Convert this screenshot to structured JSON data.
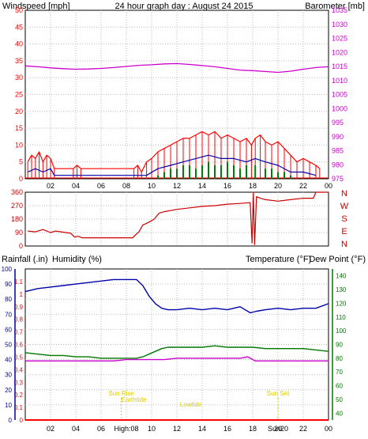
{
  "header": {
    "title": "24 hour graph day : August 24 2015",
    "left_label": "Windspeed [mph]",
    "right_label": "Barometer [mb]"
  },
  "lower_header": {
    "rain_label": "Rainfall (.in)",
    "humidity_label": "Humidity (%)",
    "temp_label": "Temperature (°F)",
    "dew_label": "Dew Point (°F)"
  },
  "colors": {
    "wind": "#ff0000",
    "gust": "#0000aa",
    "avg_wind": "#008000",
    "barometer": "#cc00cc",
    "direction": "#cc0000",
    "humidity": "#0000aa",
    "temperature": "#007700",
    "dew_point": "#cc00cc",
    "rain": "#ff0000",
    "events": "#ddcc00",
    "grid": "#bbbbbb"
  },
  "chart_data": [
    {
      "type": "line",
      "panel": "wind-barometer",
      "x_ticks": [
        "02",
        "04",
        "06",
        "08",
        "10",
        "12",
        "14",
        "16",
        "18",
        "20",
        "22",
        "00"
      ],
      "xlim": [
        0,
        24
      ],
      "y_left_ticks": [
        "0",
        "5",
        "10",
        "15",
        "20",
        "25",
        "30",
        "35",
        "40",
        "45",
        "50"
      ],
      "ylim_left": [
        0,
        50
      ],
      "y_right_ticks": [
        "975",
        "980",
        "985",
        "990",
        "995",
        "1000",
        "1005",
        "1010",
        "1015",
        "1020",
        "1025",
        "1030",
        "1035"
      ],
      "ylim_right": [
        975,
        1035
      ],
      "series": [
        {
          "name": "Windspeed [mph]",
          "axis": "left",
          "x": [
            0.2,
            0.5,
            0.8,
            1.1,
            1.4,
            1.7,
            2.0,
            2.3,
            3.8,
            4.1,
            4.4,
            8.6,
            8.9,
            9.2,
            9.6,
            10.0,
            10.5,
            11.0,
            11.5,
            12.0,
            12.5,
            13.0,
            13.5,
            14.0,
            14.5,
            15.0,
            15.5,
            16.0,
            16.5,
            17.0,
            17.5,
            17.9,
            18.2,
            18.6,
            19.0,
            19.5,
            20.0,
            20.5,
            21.0,
            21.5,
            22.0,
            22.5,
            23.0,
            23.3
          ],
          "y": [
            5,
            7,
            6,
            8,
            5,
            7,
            6,
            3,
            3,
            4,
            3,
            3,
            4,
            2,
            5,
            6,
            8,
            9,
            10,
            11,
            12,
            12,
            13,
            14,
            13,
            14,
            12,
            13,
            12,
            11,
            12,
            10,
            12,
            13,
            11,
            10,
            11,
            9,
            7,
            5,
            6,
            5,
            4,
            3
          ]
        },
        {
          "name": "Gust",
          "axis": "left",
          "x": [
            0.2,
            0.8,
            1.4,
            2.0,
            2.3,
            3.8,
            4.4,
            8.6,
            9.6,
            10.5,
            11.5,
            12.5,
            13.5,
            14.5,
            15.5,
            16.5,
            17.5,
            18.2,
            19.0,
            20.0,
            21.0,
            22.0,
            23.0
          ],
          "y": [
            2,
            3,
            2,
            3,
            1,
            1,
            1,
            1,
            1,
            3,
            4,
            5,
            6,
            7,
            6,
            6,
            5,
            6,
            5,
            4,
            2,
            2,
            1
          ]
        },
        {
          "name": "Average",
          "axis": "left",
          "x": [
            10.5,
            11.0,
            11.5,
            12.0,
            12.5,
            13.0,
            13.5,
            14.0,
            14.5,
            15.0,
            15.5,
            16.0,
            16.5,
            17.0,
            17.5,
            18.2,
            19.0,
            19.5,
            20.0,
            20.5,
            21.0
          ],
          "y": [
            1,
            2,
            3,
            3,
            4,
            4,
            3,
            4,
            5,
            4,
            4,
            5,
            4,
            3,
            4,
            4,
            3,
            3,
            2,
            2,
            1
          ]
        },
        {
          "name": "Barometer [mb]",
          "axis": "right",
          "x": [
            0,
            1,
            2,
            3,
            4,
            5,
            6,
            7,
            8,
            9,
            10,
            11,
            12,
            13,
            14,
            15,
            16,
            17,
            18,
            19,
            20,
            21,
            22,
            23,
            24
          ],
          "y": [
            1015.2,
            1014.9,
            1014.5,
            1014.2,
            1014.0,
            1014.1,
            1014.3,
            1014.6,
            1015.0,
            1015.4,
            1015.6,
            1015.9,
            1016.0,
            1015.7,
            1015.3,
            1014.9,
            1014.3,
            1013.7,
            1013.5,
            1013.2,
            1012.9,
            1013.3,
            1014.0,
            1014.6,
            1014.9
          ]
        }
      ]
    },
    {
      "type": "line",
      "panel": "wind-direction",
      "xlim": [
        0,
        24
      ],
      "y_ticks": [
        "0",
        "90",
        "180",
        "270",
        "360"
      ],
      "ylim": [
        0,
        360
      ],
      "compass_labels": [
        "N",
        "W",
        "S",
        "E",
        "N"
      ],
      "series": [
        {
          "name": "Direction",
          "x": [
            0.2,
            0.8,
            1.4,
            2.0,
            2.4,
            3.6,
            3.9,
            4.2,
            4.5,
            5.5,
            6.5,
            7.5,
            8.5,
            8.8,
            9.0,
            9.3,
            9.8,
            10.2,
            10.6,
            11.0,
            12.0,
            13.0,
            14.0,
            15.0,
            16.0,
            17.0,
            17.8,
            17.95,
            18.05,
            18.15,
            18.3,
            18.6,
            19.0,
            20.0,
            21.0,
            22.0,
            22.8,
            23.0,
            24.0
          ],
          "y": [
            100,
            95,
            110,
            90,
            100,
            85,
            60,
            65,
            55,
            55,
            55,
            55,
            55,
            80,
            95,
            140,
            160,
            180,
            220,
            230,
            245,
            255,
            265,
            270,
            280,
            285,
            290,
            20,
            360,
            10,
            330,
            320,
            310,
            300,
            310,
            320,
            320,
            360,
            360
          ]
        }
      ]
    },
    {
      "type": "line",
      "panel": "humidity-temperature",
      "xlim": [
        0,
        24
      ],
      "y_left_ticks": [
        "0",
        "10",
        "20",
        "30",
        "40",
        "50",
        "60",
        "70",
        "80",
        "90",
        "100"
      ],
      "ylim_left": [
        0,
        100
      ],
      "y_rain_ticks": [
        "0",
        "0.1",
        "0.2",
        "0.3",
        "0.4",
        "0.5",
        "0.6",
        "0.7",
        "0.8",
        "0.9",
        "1",
        "1.1"
      ],
      "ylim_rain": [
        0,
        1.2
      ],
      "y_right_ticks": [
        "40",
        "50",
        "60",
        "70",
        "80",
        "90",
        "100",
        "110",
        "120",
        "130",
        "140"
      ],
      "ylim_right": [
        35,
        145
      ],
      "x_event_labels": [
        "High:08",
        "Sun20"
      ],
      "annotations": [
        "Sun Rise",
        "Earthtide",
        "Lowtide",
        "Sun Set"
      ],
      "series": [
        {
          "name": "Humidity (%)",
          "axis": "left",
          "x": [
            0,
            1,
            2,
            3,
            4,
            5,
            6,
            7,
            8,
            8.8,
            9.3,
            9.8,
            10.3,
            10.8,
            11.3,
            12,
            13,
            14,
            15,
            16,
            17,
            17.8,
            18.3,
            19,
            20,
            21,
            22,
            23,
            24
          ],
          "y": [
            85,
            87,
            88,
            89,
            90,
            91,
            92,
            93,
            93,
            93,
            89,
            82,
            77,
            74,
            73,
            73,
            74,
            73,
            74,
            73,
            75,
            71,
            72,
            73,
            74,
            73,
            74,
            74,
            77
          ]
        },
        {
          "name": "Temperature (°F)",
          "axis": "right",
          "x": [
            0,
            1,
            2,
            3,
            4,
            5,
            6,
            7,
            8,
            8.8,
            9.3,
            9.8,
            10.3,
            10.8,
            11.3,
            12,
            13,
            14,
            15,
            16,
            17,
            18,
            19,
            20,
            21,
            22,
            23,
            24
          ],
          "y": [
            84,
            83,
            82,
            82,
            81,
            81,
            80,
            80,
            80,
            80,
            81,
            83,
            85,
            87,
            88,
            88,
            88,
            88,
            89,
            88,
            88,
            88,
            87,
            87,
            87,
            87,
            86,
            85
          ]
        },
        {
          "name": "Dew Point (°F)",
          "axis": "right",
          "x": [
            0,
            1,
            2,
            3,
            4,
            5,
            6,
            7,
            8,
            9,
            10,
            11,
            12,
            13,
            14,
            15,
            16,
            17,
            17.6,
            18.2,
            19,
            20,
            21,
            22,
            23,
            24
          ],
          "y": [
            78,
            78,
            78,
            78,
            78,
            78,
            78,
            78,
            79,
            79,
            79,
            79,
            80,
            80,
            80,
            80,
            80,
            80,
            81,
            78,
            78,
            78,
            78,
            78,
            78,
            78
          ]
        },
        {
          "name": "Rainfall (.in)",
          "axis": "rain",
          "x": [
            0,
            24
          ],
          "y": [
            0,
            0
          ]
        }
      ]
    }
  ]
}
